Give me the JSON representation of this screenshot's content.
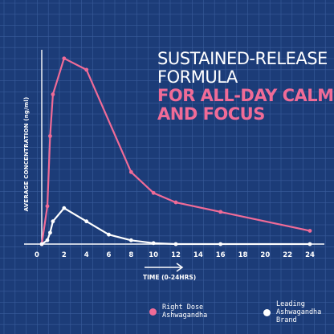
{
  "headline": {
    "line1": "Sustained-release",
    "line2": "formula",
    "line3": "For all-day calm",
    "line4": "and focus"
  },
  "colors": {
    "background": "#1c3c78",
    "grid": "#3a5d9c",
    "series_pink": "#f06b97",
    "series_white": "#ffffff",
    "accent": "#f06b97"
  },
  "chart_data": {
    "type": "line",
    "title": "",
    "xlabel": "TIME (0-24HRS)",
    "ylabel": "AVERAGE CONCENTRATION (ng/ml)",
    "xlim": [
      0,
      24
    ],
    "ylim": [
      0,
      100
    ],
    "x_ticks": [
      "0",
      "2",
      "4",
      "6",
      "8",
      "10",
      "12",
      "14",
      "16",
      "18",
      "20",
      "22",
      "24"
    ],
    "grid": true,
    "legend_position": "bottom",
    "series": [
      {
        "name": "Right Dose Ashwagandha",
        "color": "#f06b97",
        "x": [
          0,
          0.5,
          0.75,
          1,
          2,
          4,
          8,
          10,
          12,
          16,
          24
        ],
        "y": [
          0,
          20,
          57,
          79,
          98,
          92,
          38,
          27,
          22,
          17,
          7
        ]
      },
      {
        "name": "Leading Ashwagandha Brand",
        "color": "#ffffff",
        "x": [
          0,
          0.5,
          0.75,
          1,
          2,
          4,
          6,
          8,
          10,
          12,
          16,
          24
        ],
        "y": [
          0,
          2,
          6,
          12,
          19,
          12,
          5,
          2,
          0.5,
          0,
          0,
          0
        ]
      }
    ]
  }
}
